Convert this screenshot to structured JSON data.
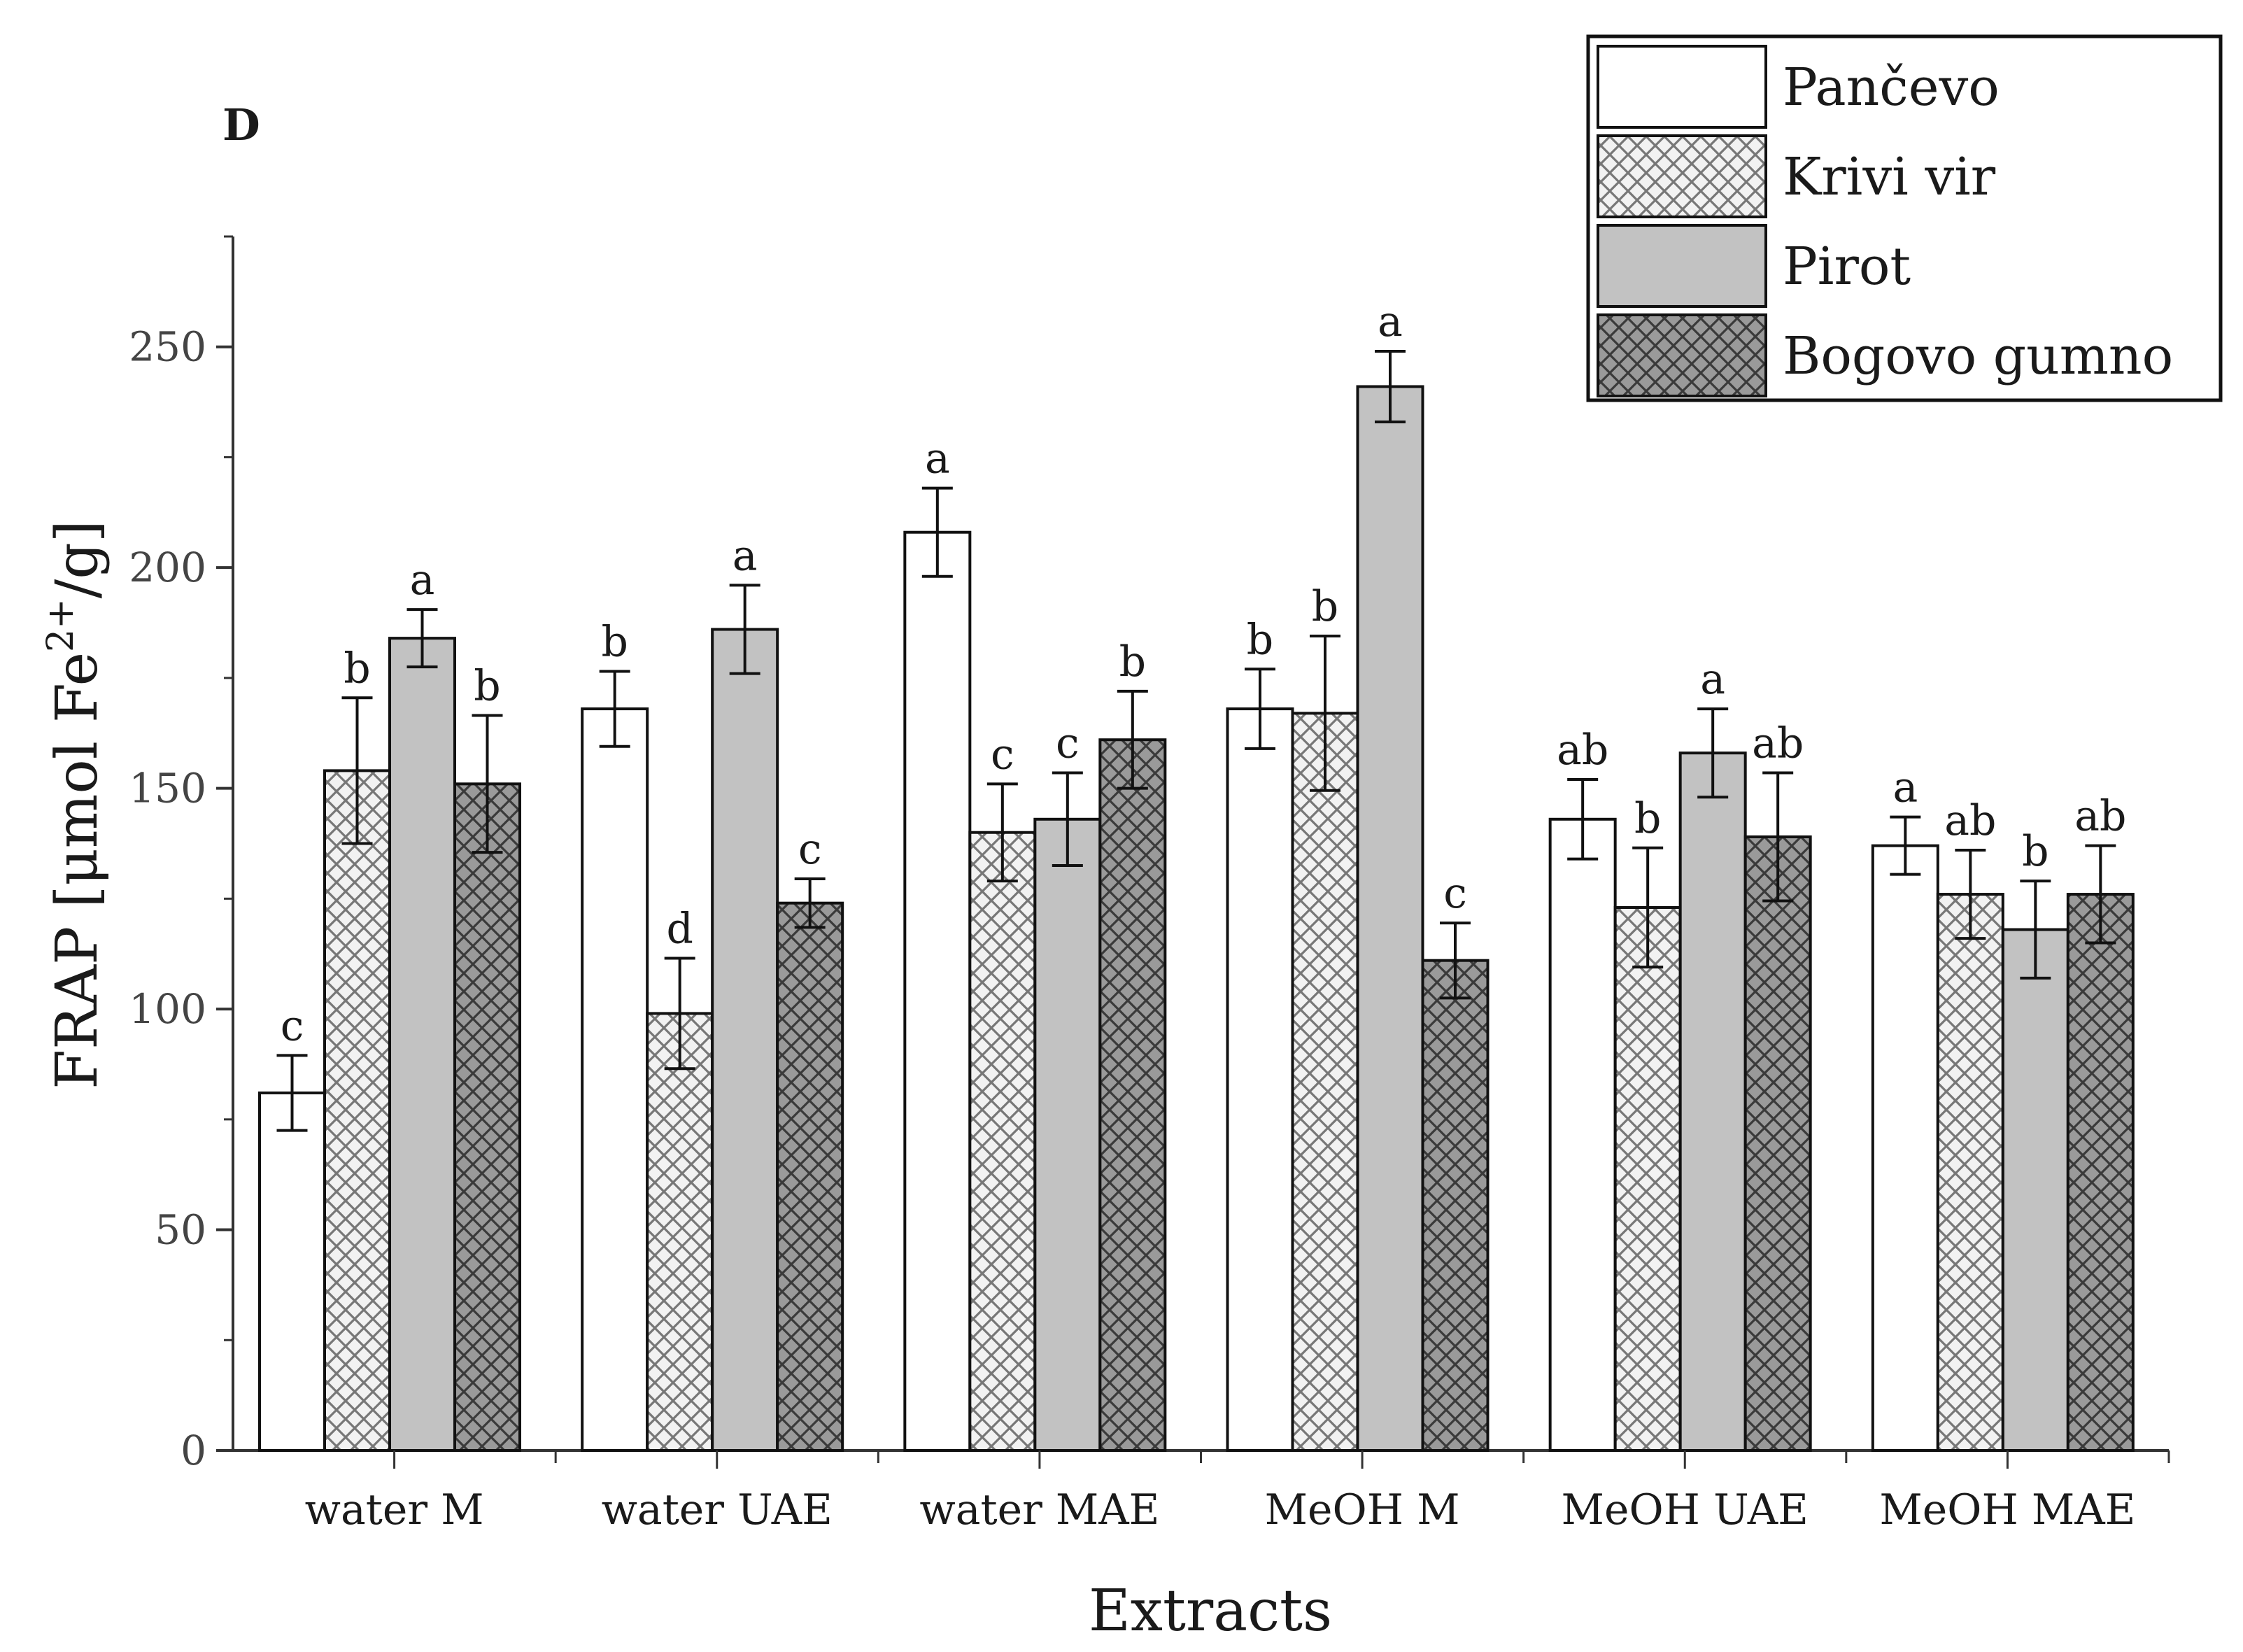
{
  "chart_data": {
    "type": "bar",
    "panel_label": "D",
    "xlabel": "Extracts",
    "ylabel": "FRAP [μmol Fe²⁺/g]",
    "ylabel_parts": {
      "main": "FRAP [μmol Fe",
      "sup": "2+",
      "tail": "/g]"
    },
    "ylim": [
      0,
      275
    ],
    "yticks": [
      0,
      50,
      100,
      150,
      200,
      250
    ],
    "ytick_labels": [
      "0",
      "50",
      "100",
      "150",
      "200",
      "250"
    ],
    "categories": [
      "water M",
      "water UAE",
      "water MAE",
      "MeOH M",
      "MeOH UAE",
      "MeOH MAE"
    ],
    "legend_position": "top-right",
    "series": [
      {
        "name": "Pančevo",
        "pattern": "white",
        "values": [
          81,
          168,
          208,
          168,
          143,
          137
        ],
        "errors": [
          8.5,
          8.5,
          10,
          9,
          9,
          6.5
        ],
        "labels": [
          "c",
          "b",
          "a",
          "b",
          "ab",
          "a"
        ]
      },
      {
        "name": "Krivi vir",
        "pattern": "light-crosshatch",
        "values": [
          154,
          99,
          140,
          167,
          123,
          126
        ],
        "errors": [
          16.5,
          12.5,
          11,
          17.5,
          13.5,
          10
        ],
        "labels": [
          "b",
          "d",
          "c",
          "b",
          "b",
          "ab"
        ]
      },
      {
        "name": "Pirot",
        "pattern": "gray",
        "values": [
          184,
          186,
          143,
          241,
          158,
          118
        ],
        "errors": [
          6.5,
          10,
          10.5,
          8,
          10,
          11
        ],
        "labels": [
          "a",
          "a",
          "c",
          "a",
          "a",
          "b"
        ]
      },
      {
        "name": "Bogovo gumno",
        "pattern": "dark-crosshatch",
        "values": [
          151,
          124,
          161,
          111,
          139,
          126
        ],
        "errors": [
          15.5,
          5.5,
          11,
          8.5,
          14.5,
          11
        ],
        "labels": [
          "b",
          "c",
          "b",
          "c",
          "ab",
          "ab"
        ]
      }
    ],
    "colors": {
      "white": "#ffffff",
      "light_hatch_bg": "#f2f2f2",
      "light_hatch_line": "#777777",
      "gray": "#c2c2c2",
      "dark_hatch_bg": "#9a9a9a",
      "dark_hatch_line": "#3a3a3a",
      "ink": "#111111"
    }
  }
}
